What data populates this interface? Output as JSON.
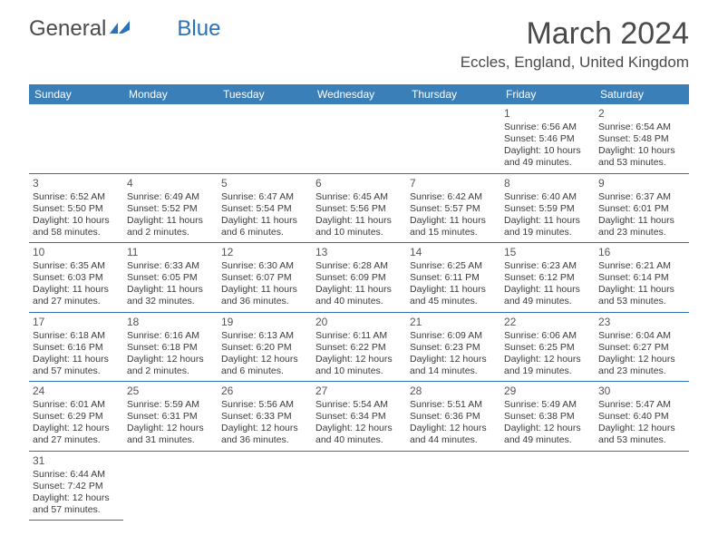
{
  "logo": {
    "text1": "General",
    "text2": "Blue"
  },
  "title": "March 2024",
  "location": "Eccles, England, United Kingdom",
  "header_bg": "#3b7fb9",
  "border_color": "#2a72b5",
  "weekdays": [
    "Sunday",
    "Monday",
    "Tuesday",
    "Wednesday",
    "Thursday",
    "Friday",
    "Saturday"
  ],
  "leading_blanks": 5,
  "days": [
    {
      "n": "1",
      "sunrise": "6:56 AM",
      "sunset": "5:46 PM",
      "daylight": "10 hours and 49 minutes."
    },
    {
      "n": "2",
      "sunrise": "6:54 AM",
      "sunset": "5:48 PM",
      "daylight": "10 hours and 53 minutes."
    },
    {
      "n": "3",
      "sunrise": "6:52 AM",
      "sunset": "5:50 PM",
      "daylight": "10 hours and 58 minutes."
    },
    {
      "n": "4",
      "sunrise": "6:49 AM",
      "sunset": "5:52 PM",
      "daylight": "11 hours and 2 minutes."
    },
    {
      "n": "5",
      "sunrise": "6:47 AM",
      "sunset": "5:54 PM",
      "daylight": "11 hours and 6 minutes."
    },
    {
      "n": "6",
      "sunrise": "6:45 AM",
      "sunset": "5:56 PM",
      "daylight": "11 hours and 10 minutes."
    },
    {
      "n": "7",
      "sunrise": "6:42 AM",
      "sunset": "5:57 PM",
      "daylight": "11 hours and 15 minutes."
    },
    {
      "n": "8",
      "sunrise": "6:40 AM",
      "sunset": "5:59 PM",
      "daylight": "11 hours and 19 minutes."
    },
    {
      "n": "9",
      "sunrise": "6:37 AM",
      "sunset": "6:01 PM",
      "daylight": "11 hours and 23 minutes."
    },
    {
      "n": "10",
      "sunrise": "6:35 AM",
      "sunset": "6:03 PM",
      "daylight": "11 hours and 27 minutes."
    },
    {
      "n": "11",
      "sunrise": "6:33 AM",
      "sunset": "6:05 PM",
      "daylight": "11 hours and 32 minutes."
    },
    {
      "n": "12",
      "sunrise": "6:30 AM",
      "sunset": "6:07 PM",
      "daylight": "11 hours and 36 minutes."
    },
    {
      "n": "13",
      "sunrise": "6:28 AM",
      "sunset": "6:09 PM",
      "daylight": "11 hours and 40 minutes."
    },
    {
      "n": "14",
      "sunrise": "6:25 AM",
      "sunset": "6:11 PM",
      "daylight": "11 hours and 45 minutes."
    },
    {
      "n": "15",
      "sunrise": "6:23 AM",
      "sunset": "6:12 PM",
      "daylight": "11 hours and 49 minutes."
    },
    {
      "n": "16",
      "sunrise": "6:21 AM",
      "sunset": "6:14 PM",
      "daylight": "11 hours and 53 minutes."
    },
    {
      "n": "17",
      "sunrise": "6:18 AM",
      "sunset": "6:16 PM",
      "daylight": "11 hours and 57 minutes."
    },
    {
      "n": "18",
      "sunrise": "6:16 AM",
      "sunset": "6:18 PM",
      "daylight": "12 hours and 2 minutes."
    },
    {
      "n": "19",
      "sunrise": "6:13 AM",
      "sunset": "6:20 PM",
      "daylight": "12 hours and 6 minutes."
    },
    {
      "n": "20",
      "sunrise": "6:11 AM",
      "sunset": "6:22 PM",
      "daylight": "12 hours and 10 minutes."
    },
    {
      "n": "21",
      "sunrise": "6:09 AM",
      "sunset": "6:23 PM",
      "daylight": "12 hours and 14 minutes."
    },
    {
      "n": "22",
      "sunrise": "6:06 AM",
      "sunset": "6:25 PM",
      "daylight": "12 hours and 19 minutes."
    },
    {
      "n": "23",
      "sunrise": "6:04 AM",
      "sunset": "6:27 PM",
      "daylight": "12 hours and 23 minutes."
    },
    {
      "n": "24",
      "sunrise": "6:01 AM",
      "sunset": "6:29 PM",
      "daylight": "12 hours and 27 minutes."
    },
    {
      "n": "25",
      "sunrise": "5:59 AM",
      "sunset": "6:31 PM",
      "daylight": "12 hours and 31 minutes."
    },
    {
      "n": "26",
      "sunrise": "5:56 AM",
      "sunset": "6:33 PM",
      "daylight": "12 hours and 36 minutes."
    },
    {
      "n": "27",
      "sunrise": "5:54 AM",
      "sunset": "6:34 PM",
      "daylight": "12 hours and 40 minutes."
    },
    {
      "n": "28",
      "sunrise": "5:51 AM",
      "sunset": "6:36 PM",
      "daylight": "12 hours and 44 minutes."
    },
    {
      "n": "29",
      "sunrise": "5:49 AM",
      "sunset": "6:38 PM",
      "daylight": "12 hours and 49 minutes."
    },
    {
      "n": "30",
      "sunrise": "5:47 AM",
      "sunset": "6:40 PM",
      "daylight": "12 hours and 53 minutes."
    },
    {
      "n": "31",
      "sunrise": "6:44 AM",
      "sunset": "7:42 PM",
      "daylight": "12 hours and 57 minutes."
    }
  ],
  "labels": {
    "sunrise": "Sunrise:",
    "sunset": "Sunset:",
    "daylight": "Daylight:"
  }
}
